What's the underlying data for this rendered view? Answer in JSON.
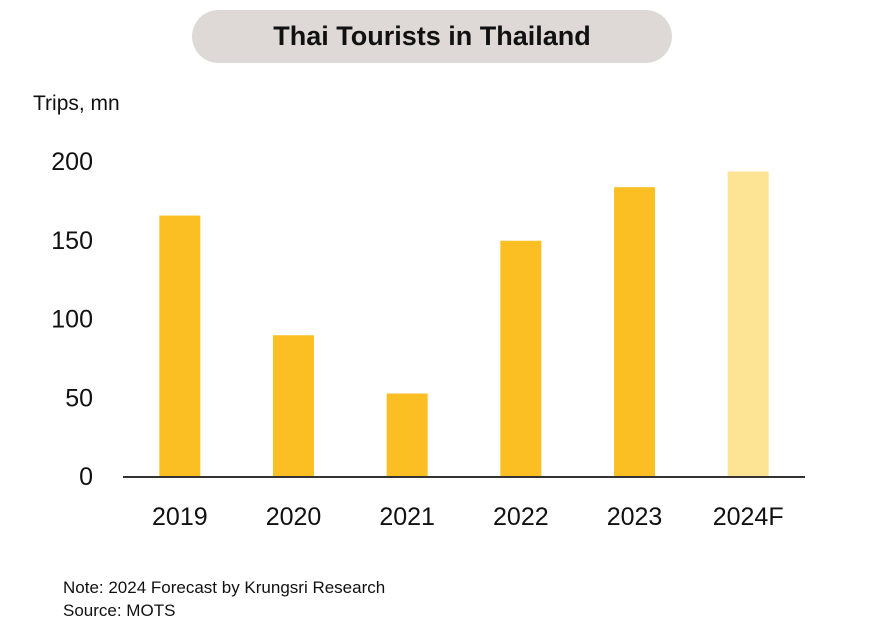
{
  "chart_data": {
    "type": "bar",
    "title": "Thai Tourists in Thailand",
    "ylabel": "Trips, mn",
    "xlabel": "",
    "categories": [
      "2019",
      "2020",
      "2021",
      "2022",
      "2023",
      "2024F"
    ],
    "values": [
      166,
      90,
      53,
      150,
      184,
      194
    ],
    "forecast": [
      false,
      false,
      false,
      false,
      false,
      true
    ],
    "ylim": [
      0,
      200
    ],
    "yticks": [
      "0",
      "50",
      "100",
      "150",
      "200"
    ],
    "grid": false,
    "legend": "none",
    "colors": {
      "actual": "#fbbf24",
      "forecast": "#fde495",
      "axis": "#333333"
    }
  },
  "notes": {
    "note": "Note: 2024 Forecast by Krungsri Research",
    "source": "Source: MOTS"
  }
}
